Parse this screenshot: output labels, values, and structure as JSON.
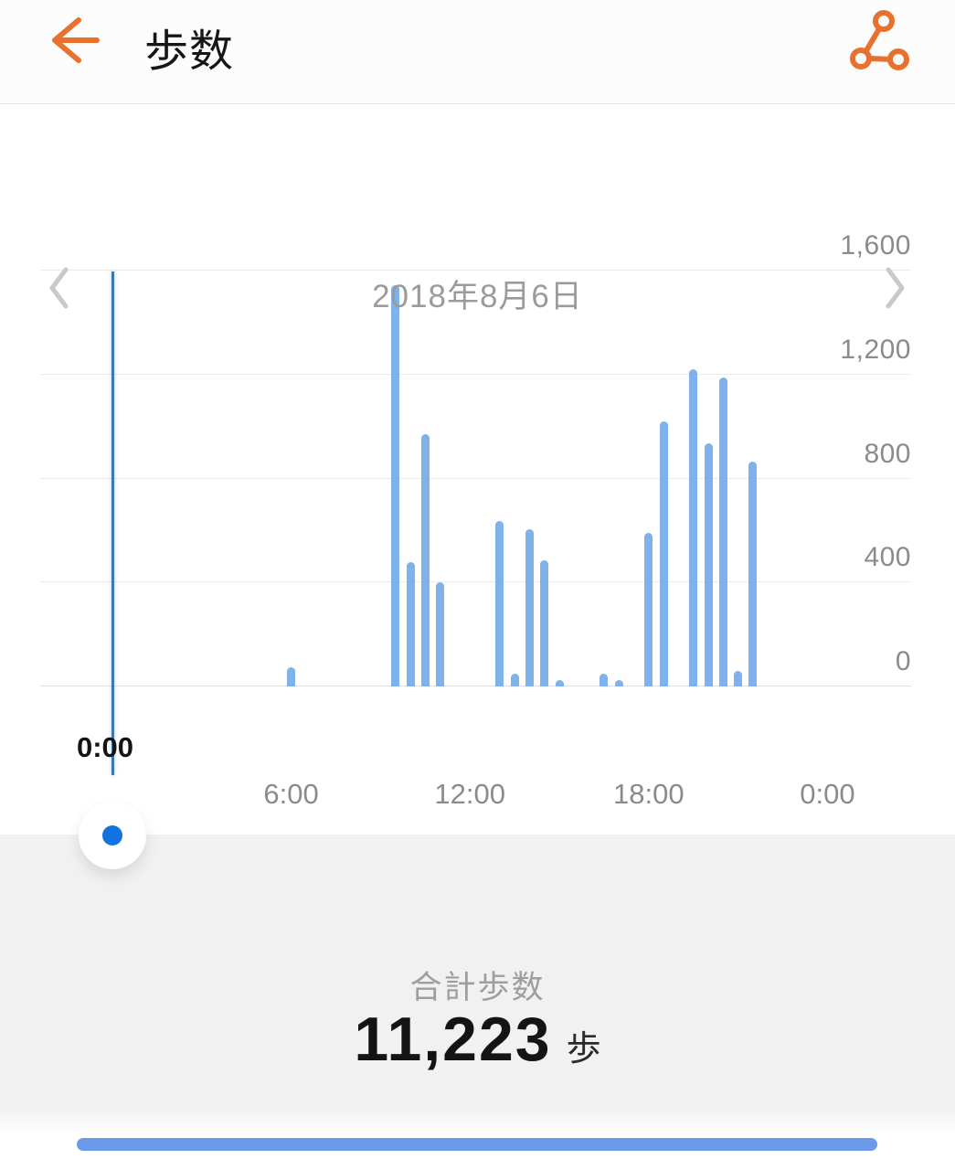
{
  "header": {
    "title": "歩数"
  },
  "date_nav": {
    "date": "2018年8月6日"
  },
  "chart_data": {
    "type": "bar",
    "x_unit": "hour_of_day",
    "x": [
      6.0,
      9.5,
      10.0,
      10.5,
      11.0,
      13.0,
      13.5,
      14.0,
      14.5,
      15.0,
      16.5,
      17.0,
      18.0,
      18.5,
      19.5,
      20.0,
      20.5,
      21.0,
      21.5
    ],
    "values": [
      75,
      1545,
      480,
      970,
      400,
      635,
      50,
      605,
      485,
      12,
      50,
      12,
      590,
      1020,
      1220,
      935,
      1190,
      60,
      865
    ],
    "ylim": [
      0,
      1600
    ],
    "yticks": [
      0,
      400,
      800,
      1200,
      1600
    ],
    "ytick_labels": [
      "0",
      "400",
      "800",
      "1,200",
      "1,600"
    ],
    "xticks": [
      6,
      12,
      18,
      24
    ],
    "xtick_labels": [
      "6:00",
      "12:00",
      "18:00",
      "0:00"
    ],
    "y_axis_side": "right",
    "grid": true,
    "legend": false,
    "selected_marker": {
      "hour": 0,
      "label": "0:00"
    },
    "bar_color": "#7fb1ea",
    "marker_line_color": "#3b79af",
    "marker_dot_color": "#1173e0"
  },
  "summary": {
    "label": "合計歩数",
    "value": "11,223",
    "unit": "歩"
  },
  "progress": {
    "color": "#6a9ae9"
  },
  "colors": {
    "accent_orange": "#e7722f",
    "chevron_gray": "#c9c9c9",
    "axis_text": "#8b8b8b",
    "section_bg": "#f1f1f1"
  }
}
